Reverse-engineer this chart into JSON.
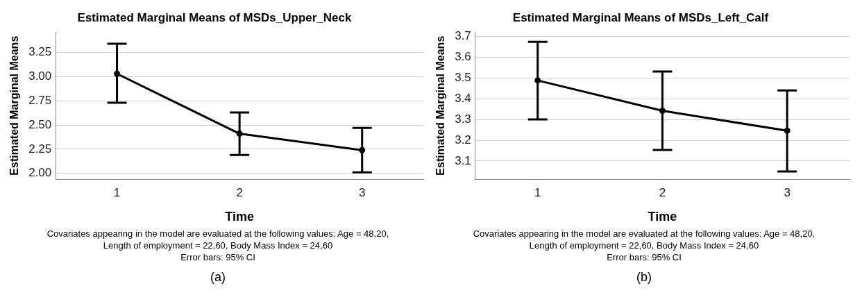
{
  "chart_data": [
    {
      "type": "line",
      "title": "Estimated Marginal Means of MSDs_Upper_Neck",
      "xlabel": "Time",
      "ylabel": "Estimated Marginal Means",
      "categories": [
        "1",
        "2",
        "3"
      ],
      "series": [
        {
          "color": "#000000",
          "values": [
            3.03,
            2.41,
            2.24
          ],
          "errors": [
            [
              2.73,
              3.34
            ],
            [
              2.19,
              2.63
            ],
            [
              2.01,
              2.47
            ]
          ]
        }
      ],
      "ylim": [
        1.94,
        3.46
      ],
      "yticks": [
        {
          "value": 2,
          "label": "2.00"
        },
        {
          "value": 2.25,
          "label": "2.25"
        },
        {
          "value": 2.5,
          "label": "2.50"
        },
        {
          "value": 2.75,
          "label": "2.75"
        },
        {
          "value": 3,
          "label": "3.00"
        },
        {
          "value": 3.25,
          "label": "3.25"
        }
      ],
      "grid": "y",
      "legend": false,
      "marker": "circle",
      "line_style": "solid",
      "annotations": [
        "Covariates appearing in the model are evaluated at the following values: Age = 48,20, Length of employment = 22,60, Body Mass Index = 24,60",
        "Error bars: 95% CI",
        "(a)"
      ]
    },
    {
      "type": "line",
      "title": "Estimated Marginal Means of MSDs_Left_Calf",
      "xlabel": "Time",
      "ylabel": "Estimated Marginal Means",
      "categories": [
        "1",
        "2",
        "3"
      ],
      "series": [
        {
          "color": "#000000",
          "values": [
            3.488,
            3.342,
            3.246
          ],
          "errors": [
            [
              3.3,
              3.674
            ],
            [
              3.153,
              3.531
            ],
            [
              3.05,
              3.44
            ]
          ]
        }
      ],
      "ylim": [
        3.013,
        3.72
      ],
      "yticks": [
        3.1,
        3.2,
        3.3,
        3.4,
        3.5,
        3.6,
        3.7
      ],
      "grid": "y",
      "legend": false,
      "marker": "circle",
      "line_style": "solid",
      "annotations": [
        "Covariates appearing in the model are evaluated at the following values: Age = 48,20, Length of employment = 22,60, Body Mass Index = 24,60",
        "Error bars: 95% CI",
        "(b)"
      ]
    }
  ]
}
